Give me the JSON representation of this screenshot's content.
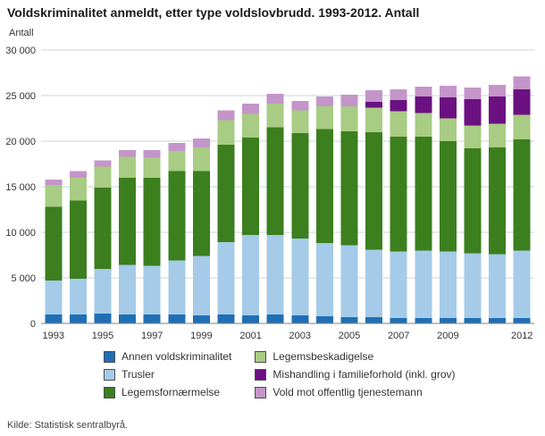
{
  "header": {
    "title": "Voldskriminalitet anmeldt, etter type voldslovbrudd. 1993-2012. Antall"
  },
  "chart": {
    "y_axis_label": "Antall"
  },
  "footer": {
    "source": "Kilde: Statistisk sentralbyrå."
  },
  "chart_data": {
    "type": "bar",
    "stacked": true,
    "title": "Voldskriminalitet anmeldt, etter type voldslovbrudd. 1993-2012. Antall",
    "xlabel": "",
    "ylabel": "Antall",
    "ylim": [
      0,
      30000
    ],
    "grid": true,
    "legend_position": "bottom",
    "categories": [
      "1993",
      "1994",
      "1995",
      "1996",
      "1997",
      "1998",
      "1999",
      "2000",
      "2001",
      "2002",
      "2003",
      "2004",
      "2005",
      "2006",
      "2007",
      "2008",
      "2009",
      "2010",
      "2011",
      "2012"
    ],
    "x_tick_years": [
      "1993",
      "1995",
      "1997",
      "1999",
      "2001",
      "2003",
      "2005",
      "2007",
      "2009",
      "2012"
    ],
    "y_ticks": [
      0,
      5000,
      10000,
      15000,
      20000,
      25000,
      30000
    ],
    "y_tick_labels": [
      "0",
      "5 000",
      "10 000",
      "15 000",
      "20 000",
      "25 000",
      "30 000"
    ],
    "colors": {
      "grid": "#c9d4dd",
      "axis": "#808080"
    },
    "series": [
      {
        "name": "Annen voldskriminalitet",
        "color": "#1f6fb5",
        "values": [
          1000,
          1000,
          1100,
          1000,
          1000,
          1000,
          900,
          1000,
          900,
          1000,
          900,
          800,
          700,
          700,
          600,
          600,
          600,
          600,
          600,
          600
        ]
      },
      {
        "name": "Trusler",
        "color": "#a5cbe8",
        "values": [
          3700,
          3900,
          4900,
          5400,
          5300,
          5900,
          6500,
          7900,
          8800,
          8700,
          8400,
          8000,
          7900,
          7400,
          7300,
          7400,
          7300,
          7100,
          7000,
          7400
        ]
      },
      {
        "name": "Legemsfornærmelse",
        "color": "#3c7f1e",
        "values": [
          8100,
          8600,
          8900,
          9600,
          9700,
          9800,
          9300,
          10700,
          10700,
          11800,
          11600,
          12500,
          12500,
          12900,
          12600,
          12500,
          12100,
          11500,
          11700,
          12200
        ]
      },
      {
        "name": "Legemsbeskadigelse",
        "color": "#a8cc83",
        "values": [
          2400,
          2500,
          2300,
          2300,
          2200,
          2200,
          2600,
          2700,
          2600,
          2600,
          2500,
          2500,
          2700,
          2700,
          2800,
          2600,
          2500,
          2500,
          2600,
          2700
        ]
      },
      {
        "name": "Mishandling i familieforhold (inkl. grov)",
        "color": "#6b1181",
        "values": [
          0,
          0,
          0,
          0,
          0,
          0,
          0,
          0,
          0,
          0,
          0,
          0,
          0,
          600,
          1200,
          1800,
          2300,
          2900,
          3000,
          2800
        ]
      },
      {
        "name": "Vold mot offentlig tjenestemann",
        "color": "#c495c9",
        "values": [
          600,
          700,
          700,
          700,
          800,
          900,
          1000,
          1100,
          1100,
          1100,
          1000,
          1100,
          1300,
          1300,
          1200,
          1100,
          1300,
          1300,
          1300,
          1400
        ]
      }
    ]
  }
}
